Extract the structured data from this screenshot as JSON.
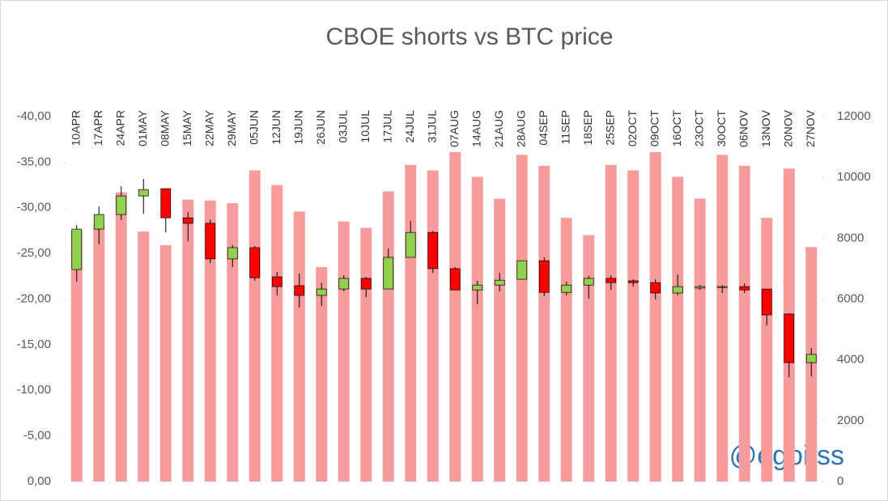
{
  "chart_data": {
    "type": "bar",
    "title": "CBOE shorts vs BTC price",
    "annotation": "@egoitss",
    "categories": [
      "10APR",
      "17APR",
      "24APR",
      "01MAY",
      "08MAY",
      "15MAY",
      "22MAY",
      "29MAY",
      "05JUN",
      "12JUN",
      "19JUN",
      "26JUN",
      "03JUL",
      "10JUL",
      "17JUL",
      "24JUL",
      "31JUL",
      "07AUG",
      "14AUG",
      "21AUG",
      "28AUG",
      "04SEP",
      "11SEP",
      "18SEP",
      "25SEP",
      "02OCT",
      "09OCT",
      "16OCT",
      "23OCT",
      "30OCT",
      "06NOV",
      "13NOV",
      "20NOV",
      "27NOV"
    ],
    "values": [
      -27.5,
      -28,
      -31.7,
      -27.4,
      -25.9,
      -30.9,
      -30.8,
      -30.5,
      -34.1,
      -32.5,
      -29.6,
      -23.5,
      -28.5,
      -27.8,
      -31.8,
      -34.7,
      -34.1,
      -36.1,
      -33.4,
      -31.0,
      -35.8,
      -34.6,
      -28.9,
      -27.0,
      -34.7,
      -34.1,
      -36.1,
      -33.4,
      -31.0,
      -35.8,
      -34.6,
      -28.9,
      -34.3,
      -25.7
    ],
    "color": "#f79c9c",
    "ylim": [
      0,
      -40
    ],
    "yticks": [
      {
        "value": 0,
        "label": "0,00"
      },
      {
        "value": -5,
        "label": "-5,00"
      },
      {
        "value": -10,
        "label": "-10,00"
      },
      {
        "value": -15,
        "label": "-15,00"
      },
      {
        "value": -20,
        "label": "-20,00"
      },
      {
        "value": -25,
        "label": "-25,00"
      },
      {
        "value": -30,
        "label": "-30,00"
      },
      {
        "value": -35,
        "label": "-35,00"
      },
      {
        "value": -40,
        "label": "-40,00"
      }
    ],
    "candles": {
      "axis": "y2",
      "up_color": "#92d050",
      "down_color": "#ff0000",
      "open": [
        6970,
        8300,
        8780,
        9390,
        9630,
        8670,
        8490,
        7320,
        7690,
        6730,
        6440,
        6120,
        6330,
        6680,
        6330,
        7370,
        8190,
        7000,
        6300,
        6460,
        6650,
        7260,
        6220,
        6460,
        6680,
        6600,
        6540,
        6200,
        6360,
        6380,
        6410,
        6330,
        5510,
        3910
      ],
      "high": [
        8430,
        9040,
        9710,
        9950,
        9630,
        8860,
        8620,
        7770,
        7740,
        6890,
        6840,
        6540,
        6780,
        6730,
        7660,
        8570,
        8240,
        7050,
        6600,
        6860,
        7260,
        7370,
        6570,
        6760,
        6780,
        6650,
        6650,
        6810,
        6460,
        6460,
        6520,
        6330,
        5510,
        4390
      ],
      "low": [
        6570,
        7800,
        8590,
        8800,
        8190,
        7900,
        7180,
        7050,
        6600,
        6120,
        5720,
        5770,
        6250,
        6060,
        6330,
        7370,
        6860,
        6300,
        5830,
        6250,
        6650,
        6090,
        6120,
        6010,
        6300,
        6410,
        5990,
        6120,
        6300,
        6200,
        6200,
        5130,
        3430,
        3460
      ],
      "close": [
        8300,
        8780,
        9390,
        9600,
        8670,
        8490,
        7320,
        7690,
        6700,
        6410,
        6120,
        6330,
        6680,
        6330,
        7370,
        8190,
        7000,
        6300,
        6460,
        6620,
        7260,
        6220,
        6460,
        6680,
        6540,
        6540,
        6200,
        6410,
        6410,
        6410,
        6300,
        5480,
        3910,
        4180
      ]
    },
    "y2lim": [
      0,
      12000
    ],
    "y2ticks": [
      0,
      2000,
      4000,
      6000,
      8000,
      10000,
      12000
    ]
  }
}
